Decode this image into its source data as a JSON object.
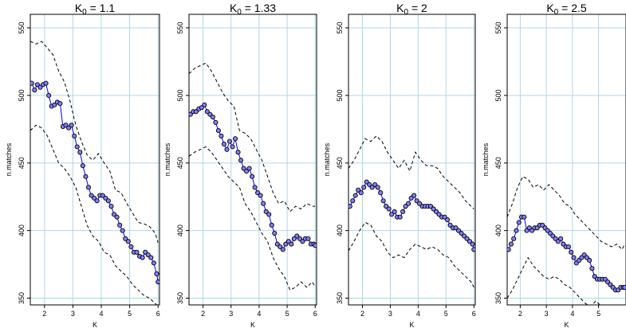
{
  "chart_data": [
    {
      "type": "line",
      "title": "K0 = 1.1",
      "title_parts": {
        "base": "K",
        "sub": "0",
        "rest": " = 1.1"
      },
      "xlabel": "K",
      "ylabel": "n.matches",
      "xlim": [
        1.5,
        6.05
      ],
      "ylim": [
        345,
        560
      ],
      "xticks": [
        2,
        3,
        4,
        5,
        6
      ],
      "yticks": [
        350,
        400,
        450,
        500,
        550
      ],
      "grid": true,
      "series": [
        {
          "role": "upper",
          "x": [
            1.5,
            1.7,
            1.9,
            2.1,
            2.3,
            2.5,
            2.7,
            2.9,
            3.1,
            3.3,
            3.5,
            3.7,
            3.9,
            4.1,
            4.3,
            4.5,
            4.7,
            4.9,
            5.1,
            5.3,
            5.5,
            5.7,
            5.9,
            6.0
          ],
          "values": [
            540,
            538,
            540,
            535,
            530,
            518,
            510,
            496,
            478,
            466,
            456,
            452,
            457,
            450,
            444,
            430,
            428,
            420,
            413,
            406,
            405,
            403,
            398,
            391
          ]
        },
        {
          "role": "median",
          "x": [
            1.55,
            1.65,
            1.75,
            1.85,
            1.95,
            2.05,
            2.15,
            2.25,
            2.35,
            2.45,
            2.55,
            2.65,
            2.75,
            2.85,
            2.95,
            3.05,
            3.15,
            3.25,
            3.35,
            3.45,
            3.55,
            3.65,
            3.75,
            3.85,
            3.95,
            4.05,
            4.15,
            4.25,
            4.35,
            4.45,
            4.55,
            4.65,
            4.75,
            4.85,
            4.95,
            5.05,
            5.15,
            5.25,
            5.35,
            5.45,
            5.55,
            5.65,
            5.75,
            5.85,
            5.95,
            6.0
          ],
          "values": [
            509,
            504,
            508,
            506,
            508,
            509,
            500,
            492,
            493,
            495,
            494,
            477,
            478,
            476,
            478,
            470,
            462,
            458,
            448,
            440,
            432,
            426,
            424,
            422,
            426,
            426,
            424,
            422,
            418,
            412,
            410,
            404,
            400,
            394,
            392,
            388,
            384,
            384,
            381,
            380,
            384,
            382,
            380,
            376,
            368,
            362
          ]
        },
        {
          "role": "lower",
          "x": [
            1.5,
            1.7,
            1.9,
            2.1,
            2.3,
            2.5,
            2.7,
            2.9,
            3.1,
            3.3,
            3.5,
            3.7,
            3.9,
            4.1,
            4.3,
            4.5,
            4.7,
            4.9,
            5.1,
            5.3,
            5.5,
            5.7,
            5.9,
            6.0
          ],
          "values": [
            474,
            478,
            476,
            470,
            460,
            450,
            446,
            440,
            432,
            418,
            404,
            396,
            392,
            384,
            382,
            374,
            370,
            366,
            360,
            356,
            352,
            350,
            346,
            344
          ]
        }
      ]
    },
    {
      "type": "line",
      "title": "K0 = 1.33",
      "title_parts": {
        "base": "K",
        "sub": "0",
        "rest": " = 1.33"
      },
      "xlabel": "K",
      "ylabel": "n.matches",
      "xlim": [
        1.5,
        6.05
      ],
      "ylim": [
        345,
        560
      ],
      "xticks": [
        2,
        3,
        4,
        5,
        6
      ],
      "yticks": [
        350,
        400,
        450,
        500,
        550
      ],
      "grid": true,
      "series": [
        {
          "role": "upper",
          "x": [
            1.5,
            1.7,
            1.9,
            2.1,
            2.3,
            2.5,
            2.7,
            2.9,
            3.1,
            3.3,
            3.5,
            3.7,
            3.9,
            4.1,
            4.3,
            4.5,
            4.7,
            4.9,
            5.1,
            5.3,
            5.5,
            5.7,
            5.9,
            6.0
          ],
          "values": [
            516,
            520,
            522,
            524,
            518,
            510,
            502,
            496,
            492,
            474,
            472,
            468,
            460,
            452,
            440,
            428,
            420,
            422,
            414,
            418,
            416,
            420,
            418,
            418
          ]
        },
        {
          "role": "median",
          "x": [
            1.55,
            1.65,
            1.75,
            1.85,
            1.95,
            2.05,
            2.15,
            2.25,
            2.35,
            2.45,
            2.55,
            2.65,
            2.75,
            2.85,
            2.95,
            3.05,
            3.15,
            3.25,
            3.35,
            3.45,
            3.55,
            3.65,
            3.75,
            3.85,
            3.95,
            4.05,
            4.15,
            4.25,
            4.35,
            4.45,
            4.55,
            4.65,
            4.75,
            4.85,
            4.95,
            5.05,
            5.15,
            5.25,
            5.35,
            5.45,
            5.55,
            5.65,
            5.75,
            5.85,
            5.95,
            6.0
          ],
          "values": [
            486,
            488,
            488,
            490,
            491,
            493,
            488,
            486,
            484,
            480,
            474,
            470,
            464,
            460,
            466,
            462,
            468,
            458,
            452,
            446,
            444,
            446,
            440,
            432,
            428,
            426,
            420,
            414,
            412,
            404,
            398,
            390,
            388,
            386,
            390,
            392,
            390,
            394,
            396,
            394,
            392,
            394,
            394,
            390,
            390,
            389
          ]
        },
        {
          "role": "lower",
          "x": [
            1.5,
            1.7,
            1.9,
            2.1,
            2.3,
            2.5,
            2.7,
            2.9,
            3.1,
            3.3,
            3.5,
            3.7,
            3.9,
            4.1,
            4.3,
            4.5,
            4.7,
            4.9,
            5.1,
            5.3,
            5.5,
            5.7,
            5.9,
            6.0
          ],
          "values": [
            455,
            458,
            460,
            462,
            458,
            452,
            446,
            440,
            436,
            432,
            420,
            414,
            406,
            398,
            392,
            380,
            372,
            366,
            356,
            358,
            362,
            358,
            362,
            358
          ]
        }
      ]
    },
    {
      "type": "line",
      "title": "K0 = 2",
      "title_parts": {
        "base": "K",
        "sub": "0",
        "rest": " = 2"
      },
      "xlabel": "K",
      "ylabel": "n.matches",
      "xlim": [
        1.5,
        6.05
      ],
      "ylim": [
        345,
        560
      ],
      "xticks": [
        2,
        3,
        4,
        5,
        6
      ],
      "yticks": [
        350,
        400,
        450,
        500,
        550
      ],
      "grid": true,
      "series": [
        {
          "role": "upper",
          "x": [
            1.5,
            1.7,
            1.9,
            2.1,
            2.3,
            2.5,
            2.7,
            2.9,
            3.1,
            3.3,
            3.5,
            3.7,
            3.9,
            4.1,
            4.3,
            4.5,
            4.7,
            4.9,
            5.1,
            5.3,
            5.5,
            5.7,
            5.9,
            6.0
          ],
          "values": [
            446,
            452,
            460,
            468,
            466,
            470,
            466,
            458,
            452,
            446,
            452,
            444,
            458,
            452,
            448,
            448,
            446,
            440,
            436,
            432,
            428,
            422,
            418,
            416
          ]
        },
        {
          "role": "median",
          "x": [
            1.55,
            1.65,
            1.75,
            1.85,
            1.95,
            2.05,
            2.15,
            2.25,
            2.35,
            2.45,
            2.55,
            2.65,
            2.75,
            2.85,
            2.95,
            3.05,
            3.15,
            3.25,
            3.35,
            3.45,
            3.55,
            3.65,
            3.75,
            3.85,
            3.95,
            4.05,
            4.15,
            4.25,
            4.35,
            4.45,
            4.55,
            4.65,
            4.75,
            4.85,
            4.95,
            5.05,
            5.15,
            5.25,
            5.35,
            5.45,
            5.55,
            5.65,
            5.75,
            5.85,
            5.95,
            6.0
          ],
          "values": [
            418,
            422,
            426,
            430,
            428,
            432,
            436,
            434,
            432,
            434,
            432,
            428,
            422,
            418,
            416,
            412,
            414,
            410,
            410,
            414,
            418,
            420,
            424,
            426,
            422,
            420,
            418,
            418,
            418,
            418,
            416,
            414,
            412,
            410,
            410,
            408,
            404,
            402,
            402,
            400,
            398,
            396,
            394,
            392,
            390,
            386
          ]
        },
        {
          "role": "lower",
          "x": [
            1.5,
            1.7,
            1.9,
            2.1,
            2.3,
            2.5,
            2.7,
            2.9,
            3.1,
            3.3,
            3.5,
            3.7,
            3.9,
            4.1,
            4.3,
            4.5,
            4.7,
            4.9,
            5.1,
            5.3,
            5.5,
            5.7,
            5.9,
            6.0
          ],
          "values": [
            385,
            392,
            400,
            406,
            404,
            396,
            392,
            384,
            380,
            382,
            380,
            386,
            390,
            388,
            386,
            388,
            386,
            382,
            380,
            374,
            370,
            366,
            362,
            358
          ]
        }
      ]
    },
    {
      "type": "line",
      "title": "K0 = 2.5",
      "title_parts": {
        "base": "K",
        "sub": "0",
        "rest": " = 2.5"
      },
      "xlabel": "K",
      "ylabel": "n.matches",
      "xlim": [
        1.5,
        6.05
      ],
      "ylim": [
        345,
        560
      ],
      "xticks": [
        2,
        3,
        4,
        5
      ],
      "yticks": [
        350,
        400,
        450,
        500,
        550
      ],
      "grid": true,
      "series": [
        {
          "role": "upper",
          "x": [
            1.5,
            1.7,
            1.9,
            2.1,
            2.3,
            2.5,
            2.7,
            2.9,
            3.1,
            3.3,
            3.5,
            3.7,
            3.9,
            4.1,
            4.3,
            4.5,
            4.7,
            4.9,
            5.1,
            5.3,
            5.5,
            5.7,
            5.9,
            6.0
          ],
          "values": [
            410,
            420,
            432,
            440,
            438,
            432,
            434,
            430,
            434,
            430,
            426,
            420,
            418,
            412,
            408,
            404,
            400,
            396,
            392,
            390,
            388,
            390,
            386,
            390
          ]
        },
        {
          "role": "median",
          "x": [
            1.55,
            1.65,
            1.75,
            1.85,
            1.95,
            2.05,
            2.15,
            2.25,
            2.35,
            2.45,
            2.55,
            2.65,
            2.75,
            2.85,
            2.95,
            3.05,
            3.15,
            3.25,
            3.35,
            3.45,
            3.55,
            3.65,
            3.75,
            3.85,
            3.95,
            4.05,
            4.15,
            4.25,
            4.35,
            4.45,
            4.55,
            4.65,
            4.75,
            4.85,
            4.95,
            5.05,
            5.15,
            5.25,
            5.35,
            5.45,
            5.55,
            5.65,
            5.75,
            5.85,
            5.95,
            6.0
          ],
          "values": [
            386,
            390,
            394,
            400,
            406,
            410,
            410,
            400,
            402,
            400,
            402,
            402,
            404,
            404,
            402,
            400,
            398,
            396,
            394,
            392,
            394,
            390,
            388,
            388,
            384,
            380,
            376,
            378,
            380,
            382,
            380,
            378,
            372,
            366,
            364,
            364,
            364,
            364,
            362,
            360,
            358,
            356,
            356,
            358,
            358,
            358
          ]
        },
        {
          "role": "lower",
          "x": [
            1.5,
            1.7,
            1.9,
            2.1,
            2.3,
            2.5,
            2.7,
            2.9,
            3.1,
            3.3,
            3.5,
            3.7,
            3.9,
            4.1,
            4.3,
            4.5,
            4.7,
            4.9,
            5.1,
            5.3,
            5.5,
            5.7,
            5.9,
            6.0
          ],
          "values": [
            350,
            356,
            364,
            372,
            380,
            374,
            370,
            366,
            364,
            366,
            364,
            360,
            358,
            354,
            350,
            346,
            344,
            348,
            344,
            340,
            338,
            336,
            334,
            332
          ]
        }
      ]
    }
  ]
}
